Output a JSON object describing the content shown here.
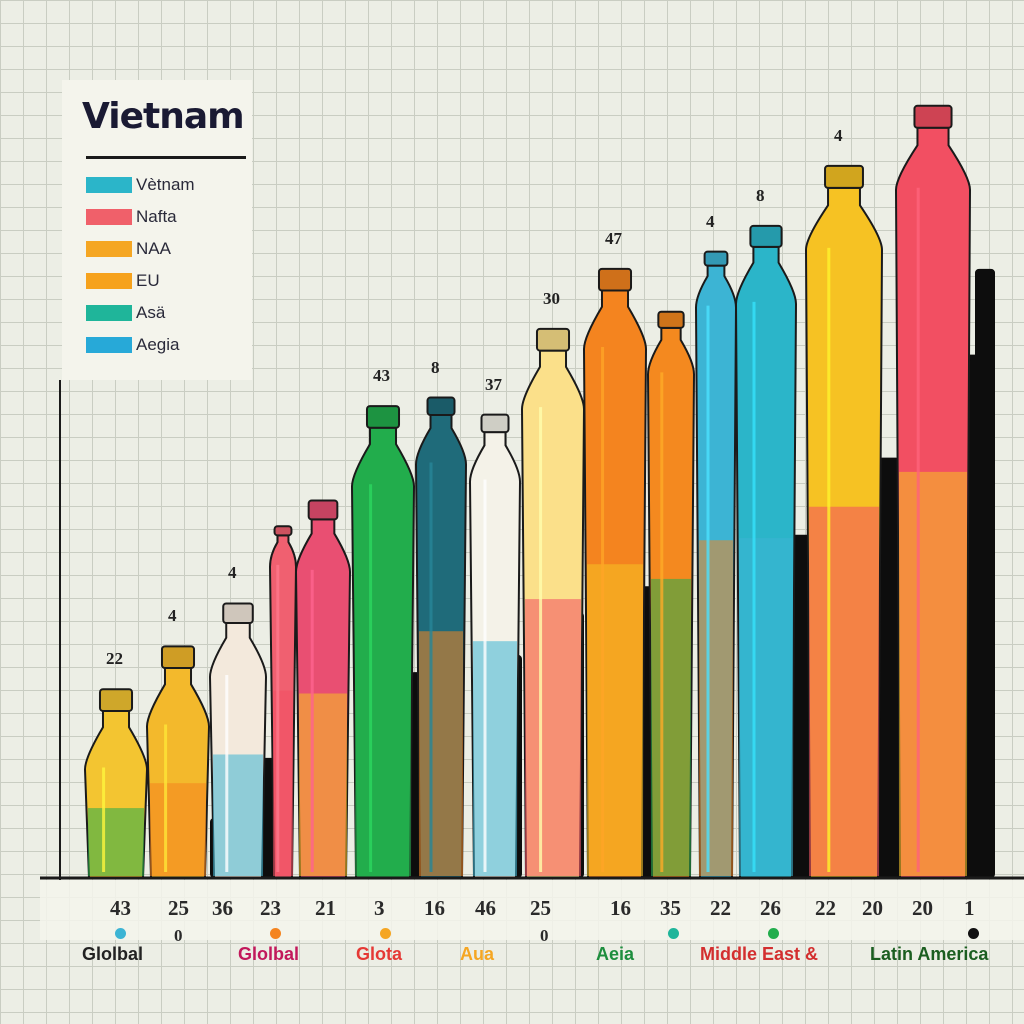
{
  "chart_data": {
    "type": "bar",
    "title": "Vietnam",
    "legend": {
      "placement": "top-left",
      "entries": [
        {
          "label": "Vètnam",
          "color": "#2bb5c9"
        },
        {
          "label": "Nafta",
          "color": "#f0606a"
        },
        {
          "label": "NAA",
          "color": "#f5a623"
        },
        {
          "label": "EU",
          "color": "#f6a21d"
        },
        {
          "label": "Asä",
          "color": "#1fb59a"
        },
        {
          "label": "Aegia",
          "color": "#27a9d8"
        }
      ]
    },
    "bars": [
      {
        "label": "22",
        "value": 22,
        "color": "#f3c531"
      },
      {
        "label": "4",
        "value": 27,
        "color": "#f3b92c"
      },
      {
        "label": "4",
        "value": 32,
        "color": "#f3e9dc"
      },
      {
        "label": "",
        "value": 41,
        "color": "#f06070"
      },
      {
        "label": "",
        "value": 44,
        "color": "#e94f72"
      },
      {
        "label": "43",
        "value": 55,
        "color": "#22ad4c"
      },
      {
        "label": "8",
        "value": 56,
        "color": "#1f6b7a"
      },
      {
        "label": "37",
        "value": 54,
        "color": "#f4f2e8"
      },
      {
        "label": "30",
        "value": 64,
        "color": "#fbe08a"
      },
      {
        "label": "47",
        "value": 71,
        "color": "#f4841f"
      },
      {
        "label": "",
        "value": 66,
        "color": "#f4891f"
      },
      {
        "label": "4",
        "value": 73,
        "color": "#3cb4d4"
      },
      {
        "label": "8",
        "value": 76,
        "color": "#2bb5c9"
      },
      {
        "label": "4",
        "value": 83,
        "color": "#f6c223"
      },
      {
        "label": "",
        "value": 90,
        "color": "#f24f62"
      }
    ],
    "black_bars": [
      {
        "value": 7
      },
      {
        "value": 14
      },
      {
        "value": 18
      },
      {
        "value": 24
      },
      {
        "value": 26
      },
      {
        "value": 31
      },
      {
        "value": 28
      },
      {
        "value": 34
      },
      {
        "value": 40
      },
      {
        "value": 49
      },
      {
        "value": 56
      },
      {
        "value": 61
      },
      {
        "value": 71
      }
    ],
    "x_ticks": [
      "43",
      "25",
      "36",
      "23",
      "21",
      "3",
      "16",
      "46",
      "25",
      "16",
      "35",
      "22",
      "26",
      "22",
      "20",
      "20",
      "1"
    ],
    "x_sub_ticks": [
      "0",
      "0"
    ],
    "regions": [
      {
        "label": "Glolbal",
        "color": "#222222",
        "dot": "#3cb4d4"
      },
      {
        "label": "Glolbal",
        "color": "#c2185b",
        "dot": "#f4841f"
      },
      {
        "label": "Glota",
        "color": "#e53935",
        "dot": "#f5a623"
      },
      {
        "label": "Aua",
        "color": "#f5a623",
        "dot": ""
      },
      {
        "label": "Aeia",
        "color": "#1e8e3e",
        "dot": "#1fb59a"
      },
      {
        "label": "Middle East &",
        "color": "#d32f2f",
        "dot": "#22ad4c"
      },
      {
        "label": "Latin America",
        "color": "#1b5e20",
        "dot": "#111111"
      }
    ],
    "ylim": [
      0,
      100
    ],
    "grid": true
  }
}
